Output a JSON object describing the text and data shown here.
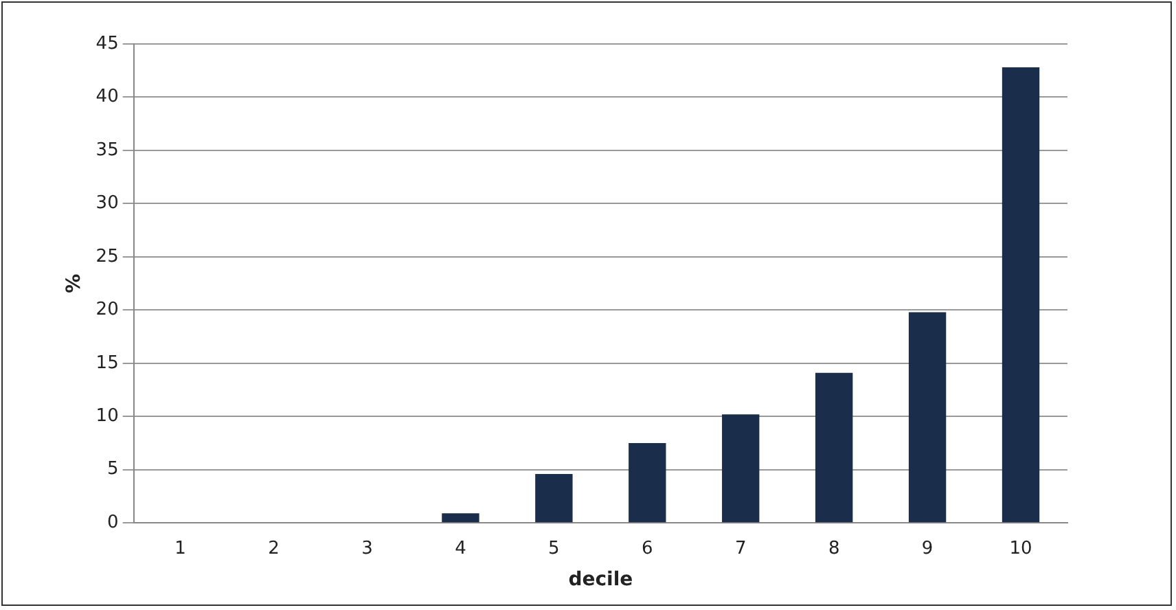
{
  "chart_data": {
    "type": "bar",
    "xlabel": "decile",
    "ylabel": "%",
    "categories": [
      "1",
      "2",
      "3",
      "4",
      "5",
      "6",
      "7",
      "8",
      "9",
      "10"
    ],
    "values": [
      0,
      0,
      0,
      0.9,
      4.6,
      7.5,
      10.2,
      14.1,
      19.8,
      42.8
    ],
    "color": "#1a2d4a",
    "ylim": [
      0,
      45
    ],
    "yticks": [
      0,
      5,
      10,
      15,
      20,
      25,
      30,
      35,
      40,
      45
    ],
    "grid": "y",
    "legend": false
  }
}
